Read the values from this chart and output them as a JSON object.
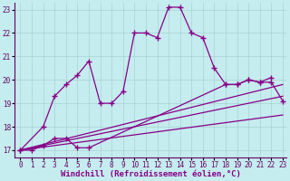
{
  "background_color": "#c5ecee",
  "line_color": "#880088",
  "xlabel": "Windchill (Refroidissement éolien,°C)",
  "tick_color": "#660066",
  "xlim": [
    0,
    23
  ],
  "ylim": [
    17,
    23
  ],
  "yticks": [
    17,
    18,
    19,
    20,
    21,
    22,
    23
  ],
  "xticks": [
    0,
    1,
    2,
    3,
    4,
    5,
    6,
    7,
    8,
    9,
    10,
    11,
    12,
    13,
    14,
    15,
    16,
    17,
    18,
    19,
    20,
    21,
    22,
    23
  ],
  "curve_main_x": [
    0,
    2,
    3,
    4,
    5,
    6,
    7,
    8,
    9,
    10,
    11,
    12,
    13,
    14,
    15,
    16,
    17,
    18,
    19,
    20,
    21,
    22
  ],
  "curve_main_y": [
    17.0,
    18.0,
    19.3,
    19.8,
    20.2,
    20.8,
    19.0,
    19.0,
    19.5,
    22.0,
    22.0,
    21.8,
    23.1,
    23.1,
    22.0,
    21.8,
    20.5,
    19.8,
    19.8,
    20.0,
    19.9,
    20.1
  ],
  "curve_lower_x": [
    0,
    1,
    2,
    3,
    4,
    5,
    6,
    18,
    19,
    20,
    21,
    22,
    23
  ],
  "curve_lower_y": [
    17.0,
    17.0,
    17.2,
    17.5,
    17.5,
    17.1,
    17.1,
    19.8,
    19.8,
    20.0,
    19.9,
    19.9,
    19.1
  ],
  "ref_line1": {
    "x": [
      0,
      23
    ],
    "y": [
      17.0,
      19.8
    ]
  },
  "ref_line2": {
    "x": [
      0,
      23
    ],
    "y": [
      17.0,
      19.3
    ]
  },
  "ref_line3": {
    "x": [
      0,
      23
    ],
    "y": [
      17.0,
      18.5
    ]
  }
}
